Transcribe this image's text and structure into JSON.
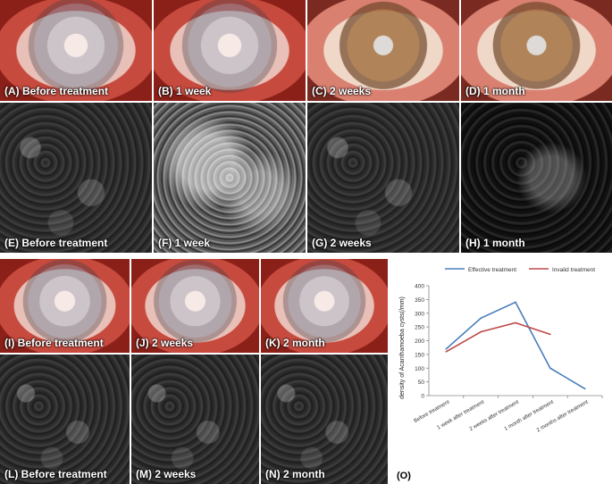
{
  "top_row_labels": [
    "(A) Before treatment",
    "(B) 1 week",
    "(C) 2 weeks",
    "(D) 1 month"
  ],
  "second_row_labels": [
    "(E) Before treatment",
    "(F) 1 week",
    "(G) 2 weeks",
    "(H) 1 month"
  ],
  "third_row_labels": [
    "(I) Before treatment",
    "(J) 2 weeks",
    "(K) 2 month"
  ],
  "fourth_row_labels": [
    "(L) Before treatment",
    "(M) 2 weeks",
    "(N) 2 month"
  ],
  "panel_o_label": "(O)",
  "chart_data": {
    "type": "line",
    "categories": [
      "Before treatment",
      "1 week  after treatment",
      "2 weeks after treatment",
      "1 month after treatment",
      "2 months  after treatment"
    ],
    "series": [
      {
        "name": "Effective treatment",
        "color": "#4a7ebb",
        "values": [
          170,
          282,
          340,
          100,
          25
        ]
      },
      {
        "name": "Invalid treatment",
        "color": "#be4b48",
        "values": [
          160,
          232,
          265,
          223,
          null
        ]
      }
    ],
    "ylabel": "density of Acanthamoeba cysts(/mm)",
    "ylim": [
      0,
      400
    ],
    "yticks": [
      0,
      50,
      100,
      150,
      200,
      250,
      300,
      350,
      400
    ],
    "grid": false,
    "legend": "top"
  }
}
